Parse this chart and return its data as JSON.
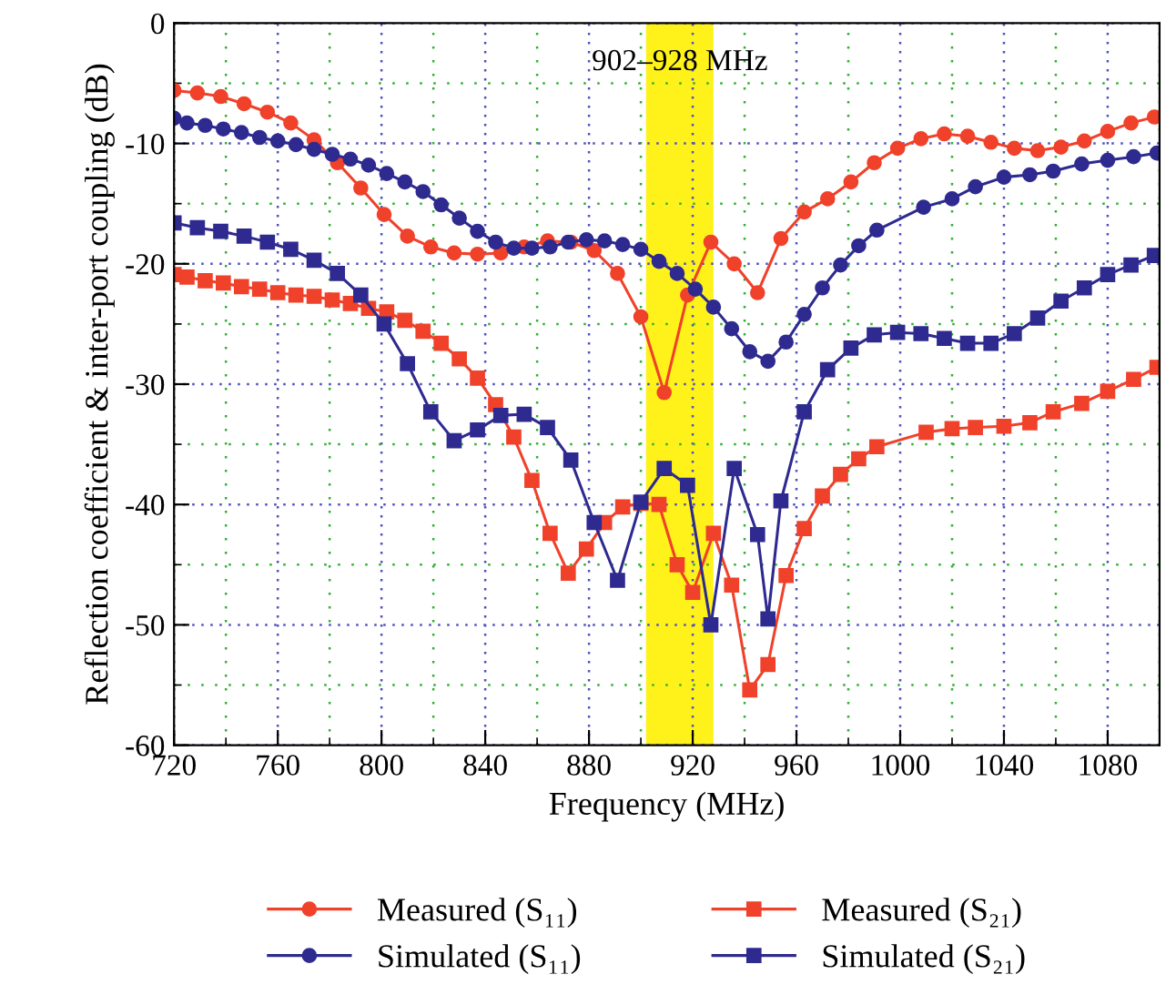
{
  "chart_data": {
    "type": "line",
    "xlabel": "Frequency (MHz)",
    "ylabel": "Reflection coefficient & inter-port coupling (dB)",
    "xlim": [
      720,
      1100
    ],
    "xticks": [
      720,
      {
        "value": 740,
        "label": null
      },
      760,
      {
        "value": 780,
        "label": null
      },
      800,
      {
        "value": 820,
        "label": null
      },
      840,
      {
        "value": 860,
        "label": null
      },
      880,
      {
        "value": 900,
        "label": null
      },
      920,
      {
        "value": 940,
        "label": null
      },
      960,
      {
        "value": 980,
        "label": null
      },
      1000,
      {
        "value": 1020,
        "label": null
      },
      1040,
      {
        "value": 1060,
        "label": null
      },
      1080,
      {
        "value": 1100,
        "label": null
      }
    ],
    "ylim": [
      -60,
      0
    ],
    "yticks": [
      -60,
      {
        "value": -55,
        "label": null
      },
      -50,
      {
        "value": -45,
        "label": null
      },
      -40,
      {
        "value": -35,
        "label": null
      },
      -30,
      {
        "value": -25,
        "label": null
      },
      -20,
      {
        "value": -15,
        "label": null
      },
      -10,
      {
        "value": -5,
        "label": null
      },
      0
    ],
    "grid": true,
    "legend": "bottom",
    "line_style": "solid",
    "bands": [
      {
        "axis": "x",
        "from": 902,
        "to": 928,
        "label": "902–928 MHz",
        "color": "#fff21a"
      }
    ],
    "series": [
      {
        "name": "Measured (S₁₁)",
        "color": "#f0412a",
        "marker": "circle",
        "x": [
          720,
          729,
          738,
          747,
          756,
          765,
          774,
          783,
          792,
          801,
          810,
          819,
          828,
          837,
          846,
          855,
          864,
          873,
          882,
          891,
          900,
          909,
          918,
          927,
          936,
          945,
          954,
          963,
          972,
          981,
          990,
          999,
          1008,
          1017,
          1026,
          1035,
          1044,
          1053,
          1062,
          1071,
          1080,
          1089,
          1098
        ],
        "values": [
          -5.6,
          -5.8,
          -6.1,
          -6.7,
          -7.4,
          -8.3,
          -9.7,
          -11.6,
          -13.7,
          -15.9,
          -17.7,
          -18.6,
          -19.1,
          -19.2,
          -19.1,
          -18.6,
          -18.1,
          -18.2,
          -18.9,
          -20.8,
          -24.4,
          -30.7,
          -22.6,
          -18.2,
          -20.0,
          -22.4,
          -17.9,
          -15.7,
          -14.6,
          -13.2,
          -11.6,
          -10.4,
          -9.6,
          -9.2,
          -9.4,
          -9.9,
          -10.4,
          -10.6,
          -10.3,
          -9.8,
          -9.0,
          -8.3,
          -7.8
        ]
      },
      {
        "name": "Simulated (S₁₁)",
        "color": "#2e2a8f",
        "marker": "circle",
        "x": [
          720,
          725,
          732,
          739,
          746,
          753,
          760,
          767,
          774,
          781,
          788,
          795,
          802,
          809,
          816,
          823,
          830,
          837,
          844,
          851,
          858,
          865,
          872,
          879,
          886,
          893,
          900,
          907,
          914,
          921,
          928,
          935,
          942,
          949,
          956,
          963,
          970,
          977,
          984,
          991,
          1009,
          1020,
          1029,
          1040,
          1050,
          1059,
          1070,
          1080,
          1090,
          1099
        ],
        "values": [
          -7.9,
          -8.3,
          -8.5,
          -8.8,
          -9.1,
          -9.5,
          -9.8,
          -10.1,
          -10.5,
          -10.9,
          -11.3,
          -11.8,
          -12.5,
          -13.2,
          -14.0,
          -15.1,
          -16.2,
          -17.3,
          -18.2,
          -18.7,
          -18.7,
          -18.6,
          -18.2,
          -18.0,
          -18.1,
          -18.4,
          -18.8,
          -19.8,
          -20.8,
          -22.1,
          -23.6,
          -25.4,
          -27.3,
          -28.1,
          -26.5,
          -24.2,
          -22.0,
          -20.1,
          -18.5,
          -17.2,
          -15.3,
          -14.6,
          -13.6,
          -12.8,
          -12.6,
          -12.3,
          -11.7,
          -11.4,
          -11.1,
          -10.8
        ]
      },
      {
        "name": "Measured (S₂₁)",
        "color": "#f0412a",
        "marker": "square",
        "x": [
          720,
          725,
          732,
          739,
          746,
          753,
          760,
          767,
          774,
          781,
          788,
          795,
          802,
          809,
          816,
          823,
          830,
          837,
          844,
          851,
          858,
          865,
          872,
          879,
          886,
          893,
          900,
          907,
          914,
          920,
          928,
          935,
          942,
          949,
          956,
          963,
          970,
          977,
          984,
          991,
          1010,
          1020,
          1029,
          1040,
          1050,
          1059,
          1070,
          1080,
          1090,
          1099
        ],
        "values": [
          -20.9,
          -21.1,
          -21.4,
          -21.6,
          -21.9,
          -22.1,
          -22.4,
          -22.6,
          -22.7,
          -23.0,
          -23.3,
          -23.7,
          -24.0,
          -24.7,
          -25.6,
          -26.6,
          -27.9,
          -29.5,
          -31.7,
          -34.4,
          -38.0,
          -42.4,
          -45.7,
          -43.7,
          -41.5,
          -40.2,
          -39.9,
          -40.0,
          -45.0,
          -47.3,
          -42.4,
          -46.7,
          -55.4,
          -53.3,
          -45.9,
          -42.0,
          -39.3,
          -37.5,
          -36.2,
          -35.2,
          -34.0,
          -33.7,
          -33.6,
          -33.5,
          -33.2,
          -32.3,
          -31.6,
          -30.6,
          -29.6,
          -28.6
        ]
      },
      {
        "name": "Simulated (S₂₁)",
        "color": "#2e2a8f",
        "marker": "square",
        "x": [
          720,
          729,
          738,
          747,
          756,
          765,
          774,
          783,
          792,
          801,
          810,
          819,
          828,
          837,
          846,
          855,
          864,
          873,
          882,
          891,
          900,
          909,
          918,
          927,
          936,
          945,
          949,
          954,
          963,
          972,
          981,
          990,
          999,
          1008,
          1017,
          1026,
          1035,
          1044,
          1053,
          1062,
          1071,
          1080,
          1089,
          1098
        ],
        "values": [
          -16.6,
          -17.0,
          -17.3,
          -17.7,
          -18.2,
          -18.8,
          -19.7,
          -20.8,
          -22.6,
          -25.0,
          -28.3,
          -32.3,
          -34.7,
          -33.8,
          -32.6,
          -32.5,
          -33.6,
          -36.3,
          -41.5,
          -46.3,
          -39.8,
          -37.0,
          -38.4,
          -50.0,
          -37.0,
          -42.5,
          -49.5,
          -39.7,
          -32.3,
          -28.8,
          -27.0,
          -25.9,
          -25.7,
          -25.8,
          -26.2,
          -26.6,
          -26.6,
          -25.8,
          -24.5,
          -23.1,
          -22.0,
          -20.9,
          -20.1,
          -19.3
        ]
      }
    ]
  }
}
